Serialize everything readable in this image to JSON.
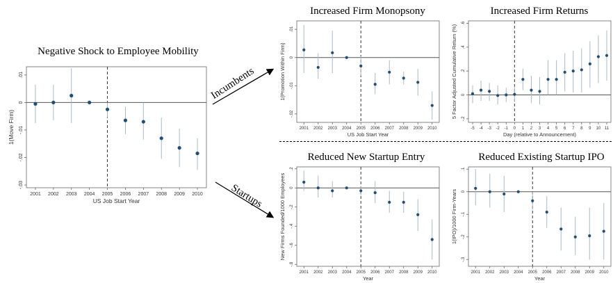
{
  "chart_data": [
    {
      "type": "scatter",
      "title": "Negative Shock to Employee Mobility",
      "xlabel": "US Job Start Year",
      "ylabel": "1(Move Firm)",
      "categories": [
        "2001",
        "2002",
        "2003",
        "2004",
        "2005",
        "2006",
        "2007",
        "2008",
        "2009",
        "2010"
      ],
      "values": [
        -0.0005,
        0.0,
        0.0025,
        0.0,
        -0.0025,
        -0.0065,
        -0.007,
        -0.013,
        -0.0165,
        -0.0185
      ],
      "ci_low": [
        -0.0075,
        -0.0065,
        -0.0075,
        0.0,
        -0.0055,
        -0.0115,
        -0.0135,
        -0.0205,
        -0.0235,
        -0.0245
      ],
      "ci_high": [
        0.0065,
        0.0065,
        0.0125,
        0.0,
        0.0,
        -0.0015,
        0.0,
        -0.0055,
        -0.0095,
        -0.013
      ],
      "yticks": [
        ".01",
        "0",
        "-.01",
        "-.02",
        "-.03"
      ],
      "ytick_values": [
        0.01,
        0.0,
        -0.01,
        -0.02,
        -0.03
      ],
      "ylim": [
        -0.031,
        0.013
      ],
      "reference_line": "2005"
    },
    {
      "type": "scatter",
      "title": "Increased Firm Monopsony",
      "xlabel": "US Job Start Year",
      "ylabel": "1(Promotion Within Firm)",
      "categories": [
        "2001",
        "2002",
        "2003",
        "2004",
        "2005",
        "2006",
        "2007",
        "2008",
        "2009",
        "2010"
      ],
      "values": [
        0.0027,
        -0.0035,
        0.0017,
        0.0,
        -0.003,
        -0.0095,
        -0.0052,
        -0.0073,
        -0.0088,
        -0.017
      ],
      "ci_low": [
        -0.0055,
        -0.0075,
        -0.0055,
        0.0,
        -0.0065,
        -0.013,
        -0.0095,
        -0.0095,
        -0.0135,
        -0.022
      ],
      "ci_high": [
        0.0115,
        0.0015,
        0.0095,
        0.0,
        0.0005,
        -0.0055,
        -0.001,
        -0.005,
        -0.004,
        -0.012
      ],
      "yticks": [
        ".01",
        "0",
        "-.01",
        "-.02"
      ],
      "ytick_values": [
        0.01,
        0.0,
        -0.01,
        -0.02
      ],
      "ylim": [
        -0.023,
        0.013
      ],
      "reference_line": "2005"
    },
    {
      "type": "scatter",
      "title": "Increased Firm Returns",
      "xlabel": "Day (relative to Announcement)",
      "ylabel": "5 Factor Adjusted Cumulative Return (%)",
      "categories": [
        "-5",
        "-4",
        "-3",
        "-2",
        "-1",
        "0",
        "1",
        "2",
        "3",
        "4",
        "5",
        "6",
        "7",
        "8",
        "9",
        "10",
        "11"
      ],
      "values": [
        0.01,
        0.04,
        0.03,
        -0.005,
        0.0,
        0.005,
        0.13,
        0.04,
        0.03,
        0.13,
        0.13,
        0.19,
        0.2,
        0.21,
        0.26,
        0.32,
        0.33
      ],
      "ci_low": [
        -0.07,
        -0.05,
        -0.05,
        -0.08,
        -0.06,
        -0.06,
        0.04,
        -0.07,
        -0.08,
        0.0,
        0.0,
        0.03,
        0.02,
        0.02,
        0.06,
        0.1,
        0.12
      ],
      "ci_high": [
        0.08,
        0.12,
        0.1,
        0.08,
        0.06,
        0.07,
        0.22,
        0.16,
        0.15,
        0.29,
        0.29,
        0.35,
        0.37,
        0.39,
        0.45,
        0.5,
        0.54
      ],
      "yticks": [
        ".6",
        ".4",
        ".2",
        "0",
        "-.2"
      ],
      "ytick_values": [
        0.6,
        0.4,
        0.2,
        0.0,
        -0.2
      ],
      "ylim": [
        -0.23,
        0.62
      ],
      "reference_line": "0"
    },
    {
      "type": "scatter",
      "title": "Reduced New Startup Entry",
      "xlabel": "Year",
      "ylabel": "New Firms Founded/1000 Employees",
      "categories": [
        "2001",
        "2002",
        "2003",
        "2004",
        "2005",
        "2006",
        "2007",
        "2008",
        "2009",
        "2010"
      ],
      "values": [
        0.06,
        0.0,
        -0.03,
        0.0,
        -0.03,
        -0.05,
        -0.15,
        -0.15,
        -0.28,
        -0.54
      ],
      "ci_low": [
        -0.03,
        -0.1,
        -0.1,
        0.0,
        -0.08,
        -0.16,
        -0.26,
        -0.26,
        -0.45,
        -0.75
      ],
      "ci_high": [
        0.18,
        0.13,
        0.07,
        0.0,
        0.02,
        0.07,
        -0.03,
        -0.04,
        -0.12,
        -0.33
      ],
      "yticks": [
        ".2",
        "0",
        "-.2",
        "-.4",
        "-.6",
        "-.8"
      ],
      "ytick_values": [
        0.2,
        0.0,
        -0.2,
        -0.4,
        -0.6,
        -0.8
      ],
      "ylim": [
        -0.82,
        0.22
      ],
      "reference_line": "2005"
    },
    {
      "type": "scatter",
      "title": "Reduced Existing Startup IPO",
      "xlabel": "Year",
      "ylabel": "1(IPO)/1000 Firm-Years",
      "categories": [
        "2001",
        "2002",
        "2003",
        "2004",
        "2005",
        "2006",
        "2007",
        "2008",
        "2009",
        "2010"
      ],
      "values": [
        0.015,
        0.0,
        -0.01,
        0.0,
        -0.04,
        -0.09,
        -0.165,
        -0.2,
        -0.195,
        -0.175
      ],
      "ci_low": [
        -0.06,
        -0.07,
        -0.09,
        0.0,
        -0.08,
        -0.16,
        -0.26,
        -0.28,
        -0.3,
        -0.3
      ],
      "ci_high": [
        0.1,
        0.08,
        0.07,
        0.0,
        0.0,
        -0.02,
        -0.07,
        -0.11,
        -0.07,
        -0.05
      ],
      "yticks": [
        ".1",
        "0",
        "-.1",
        "-.2",
        "-.3"
      ],
      "ytick_values": [
        0.1,
        0.0,
        -0.1,
        -0.2,
        -0.3
      ],
      "ylim": [
        -0.33,
        0.11
      ],
      "reference_line": "2005"
    }
  ],
  "arrows": {
    "incumbents_label": "Incumbents",
    "startups_label": "Startups"
  },
  "colors": {
    "point": "#1f4e79",
    "ci": "#a9b9c9",
    "zero_line": "#555555",
    "axis": "#666666"
  }
}
